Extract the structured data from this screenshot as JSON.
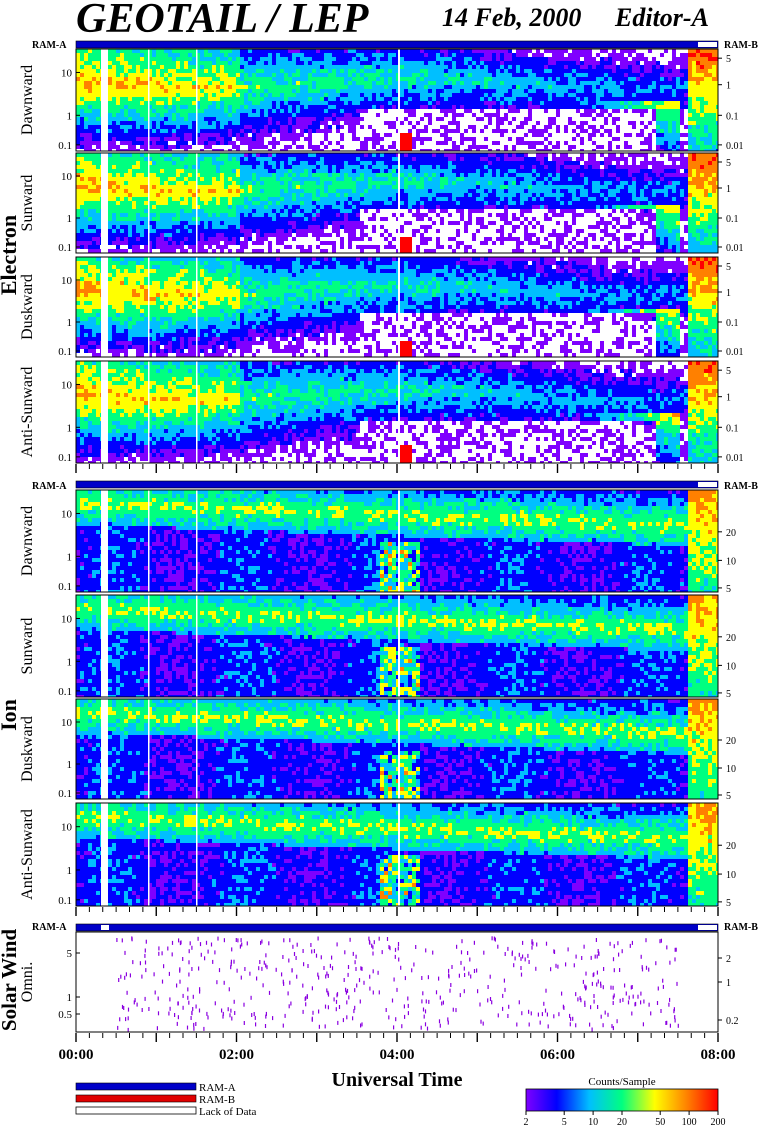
{
  "header": {
    "title": "GEOTAIL / LEP",
    "date": "14 Feb, 2000",
    "editor": "Editor-A"
  },
  "sections": [
    {
      "label": "Electron",
      "ram_left": "RAM-A",
      "ram_right": "RAM-B"
    },
    {
      "label": "Ion",
      "ram_left": "RAM-A",
      "ram_right": "RAM-B"
    },
    {
      "label": "Solar Wind",
      "ram_left": "RAM-A",
      "ram_right": "RAM-B"
    }
  ],
  "legend": {
    "ram_a": {
      "label": "RAM-A",
      "color": "#0000c8"
    },
    "ram_b": {
      "label": "RAM-B",
      "color": "#e00000"
    },
    "lack": {
      "label": "Lack of Data",
      "color": "#ffffff"
    }
  },
  "colorbar": {
    "title": "Counts/Sample",
    "ticks": [
      "2",
      "5",
      "10",
      "20",
      "50",
      "100",
      "200"
    ]
  },
  "chart_data": {
    "type": "heatmap",
    "xlabel": "Universal Time",
    "x_ticks": [
      "00:00",
      "02:00",
      "04:00",
      "06:00",
      "08:00"
    ],
    "xlim": [
      "00:00",
      "08:00"
    ],
    "colormap": [
      "#7f00ff",
      "#0000ff",
      "#00bfff",
      "#00ff80",
      "#ffff00",
      "#ff8000",
      "#ff0000"
    ],
    "panels": [
      {
        "group": "Electron",
        "label": "Dawnward",
        "y_ticks": [
          "10",
          "1",
          "0.1"
        ],
        "y2_ticks": [
          "5",
          "1",
          "0.1",
          "0.01"
        ]
      },
      {
        "group": "Electron",
        "label": "Sunward",
        "y_ticks": [
          "10",
          "1",
          "0.1"
        ],
        "y2_ticks": [
          "5",
          "1",
          "0.1",
          "0.01"
        ]
      },
      {
        "group": "Electron",
        "label": "Duskward",
        "y_ticks": [
          "10",
          "1",
          "0.1"
        ],
        "y2_ticks": [
          "5",
          "1",
          "0.1",
          "0.01"
        ]
      },
      {
        "group": "Electron",
        "label": "Anti-Sunward",
        "y_ticks": [
          "10",
          "1",
          "0.1"
        ],
        "y2_ticks": [
          "5",
          "1",
          "0.1",
          "0.01"
        ]
      },
      {
        "group": "Ion",
        "label": "Dawnward",
        "y_ticks": [
          "10",
          "1",
          "0.1"
        ],
        "y2_ticks": [
          "20",
          "10",
          "5"
        ]
      },
      {
        "group": "Ion",
        "label": "Sunward",
        "y_ticks": [
          "10",
          "1",
          "0.1"
        ],
        "y2_ticks": [
          "20",
          "10",
          "5"
        ]
      },
      {
        "group": "Ion",
        "label": "Duskward",
        "y_ticks": [
          "10",
          "1",
          "0.1"
        ],
        "y2_ticks": [
          "20",
          "10",
          "5"
        ]
      },
      {
        "group": "Ion",
        "label": "Anti-Sunward",
        "y_ticks": [
          "10",
          "1",
          "0.1"
        ],
        "y2_ticks": [
          "20",
          "10",
          "5"
        ]
      },
      {
        "group": "Solar Wind",
        "label": "Omni.",
        "y_ticks": [
          "5",
          "1",
          "0.5"
        ],
        "y2_ticks": [
          "2",
          "1",
          "0.2"
        ]
      }
    ]
  }
}
